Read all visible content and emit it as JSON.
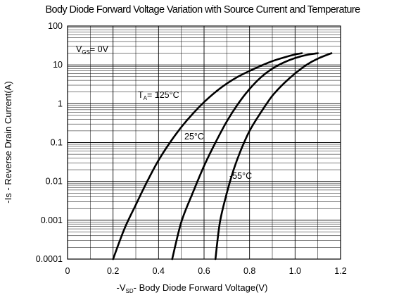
{
  "chart_data": {
    "type": "line",
    "title": "Body Diode Forward Voltage Variation with Source Current and Temperature",
    "xlabel": {
      "prefix": "-V",
      "sub": "SD",
      "suffix": "- Body Diode Forward Voltage(V)"
    },
    "ylabel": "-Is - Reverse Drain Current(A)",
    "xlim": [
      0,
      1.2
    ],
    "ylim": [
      0.0001,
      100
    ],
    "yscale": "log",
    "x_ticks": [
      "0",
      "0.2",
      "0.4",
      "0.6",
      "0.8",
      "1.0",
      "1.2"
    ],
    "y_ticks": [
      "0.0001",
      "0.001",
      "0.01",
      "0.1",
      "1",
      "10",
      "100"
    ],
    "grid": true,
    "annotations": {
      "vgs": {
        "main": "V",
        "sub": "GS",
        "rest": "= 0V"
      },
      "t125": {
        "main": "T",
        "sub": "A",
        "rest": "= 125°C"
      },
      "t25": "25°C",
      "tm55": "-55°C"
    },
    "series": [
      {
        "x": [
          0.2,
          0.25,
          0.3,
          0.35,
          0.4,
          0.45,
          0.5,
          0.55,
          0.6,
          0.65,
          0.7,
          0.75,
          0.8,
          0.85,
          0.9,
          0.95,
          1.0,
          1.03
        ],
        "y": [
          0.0001,
          0.0006,
          0.0025,
          0.01,
          0.035,
          0.1,
          0.25,
          0.55,
          1.1,
          2.0,
          3.3,
          5.0,
          7.0,
          9.5,
          12.5,
          15.5,
          18.5,
          20
        ]
      },
      {
        "x": [
          0.46,
          0.5,
          0.55,
          0.6,
          0.65,
          0.7,
          0.75,
          0.8,
          0.85,
          0.9,
          0.95,
          1.0,
          1.05,
          1.1
        ],
        "y": [
          0.0001,
          0.0009,
          0.005,
          0.025,
          0.1,
          0.35,
          1.0,
          2.4,
          4.8,
          8.0,
          11.5,
          15.0,
          18.0,
          20
        ]
      },
      {
        "x": [
          0.65,
          0.67,
          0.7,
          0.73,
          0.76,
          0.8,
          0.85,
          0.9,
          0.95,
          1.0,
          1.05,
          1.1,
          1.16
        ],
        "y": [
          0.0001,
          0.0009,
          0.005,
          0.02,
          0.06,
          0.2,
          0.6,
          1.6,
          3.3,
          6.0,
          10.0,
          14.5,
          20
        ]
      }
    ]
  }
}
